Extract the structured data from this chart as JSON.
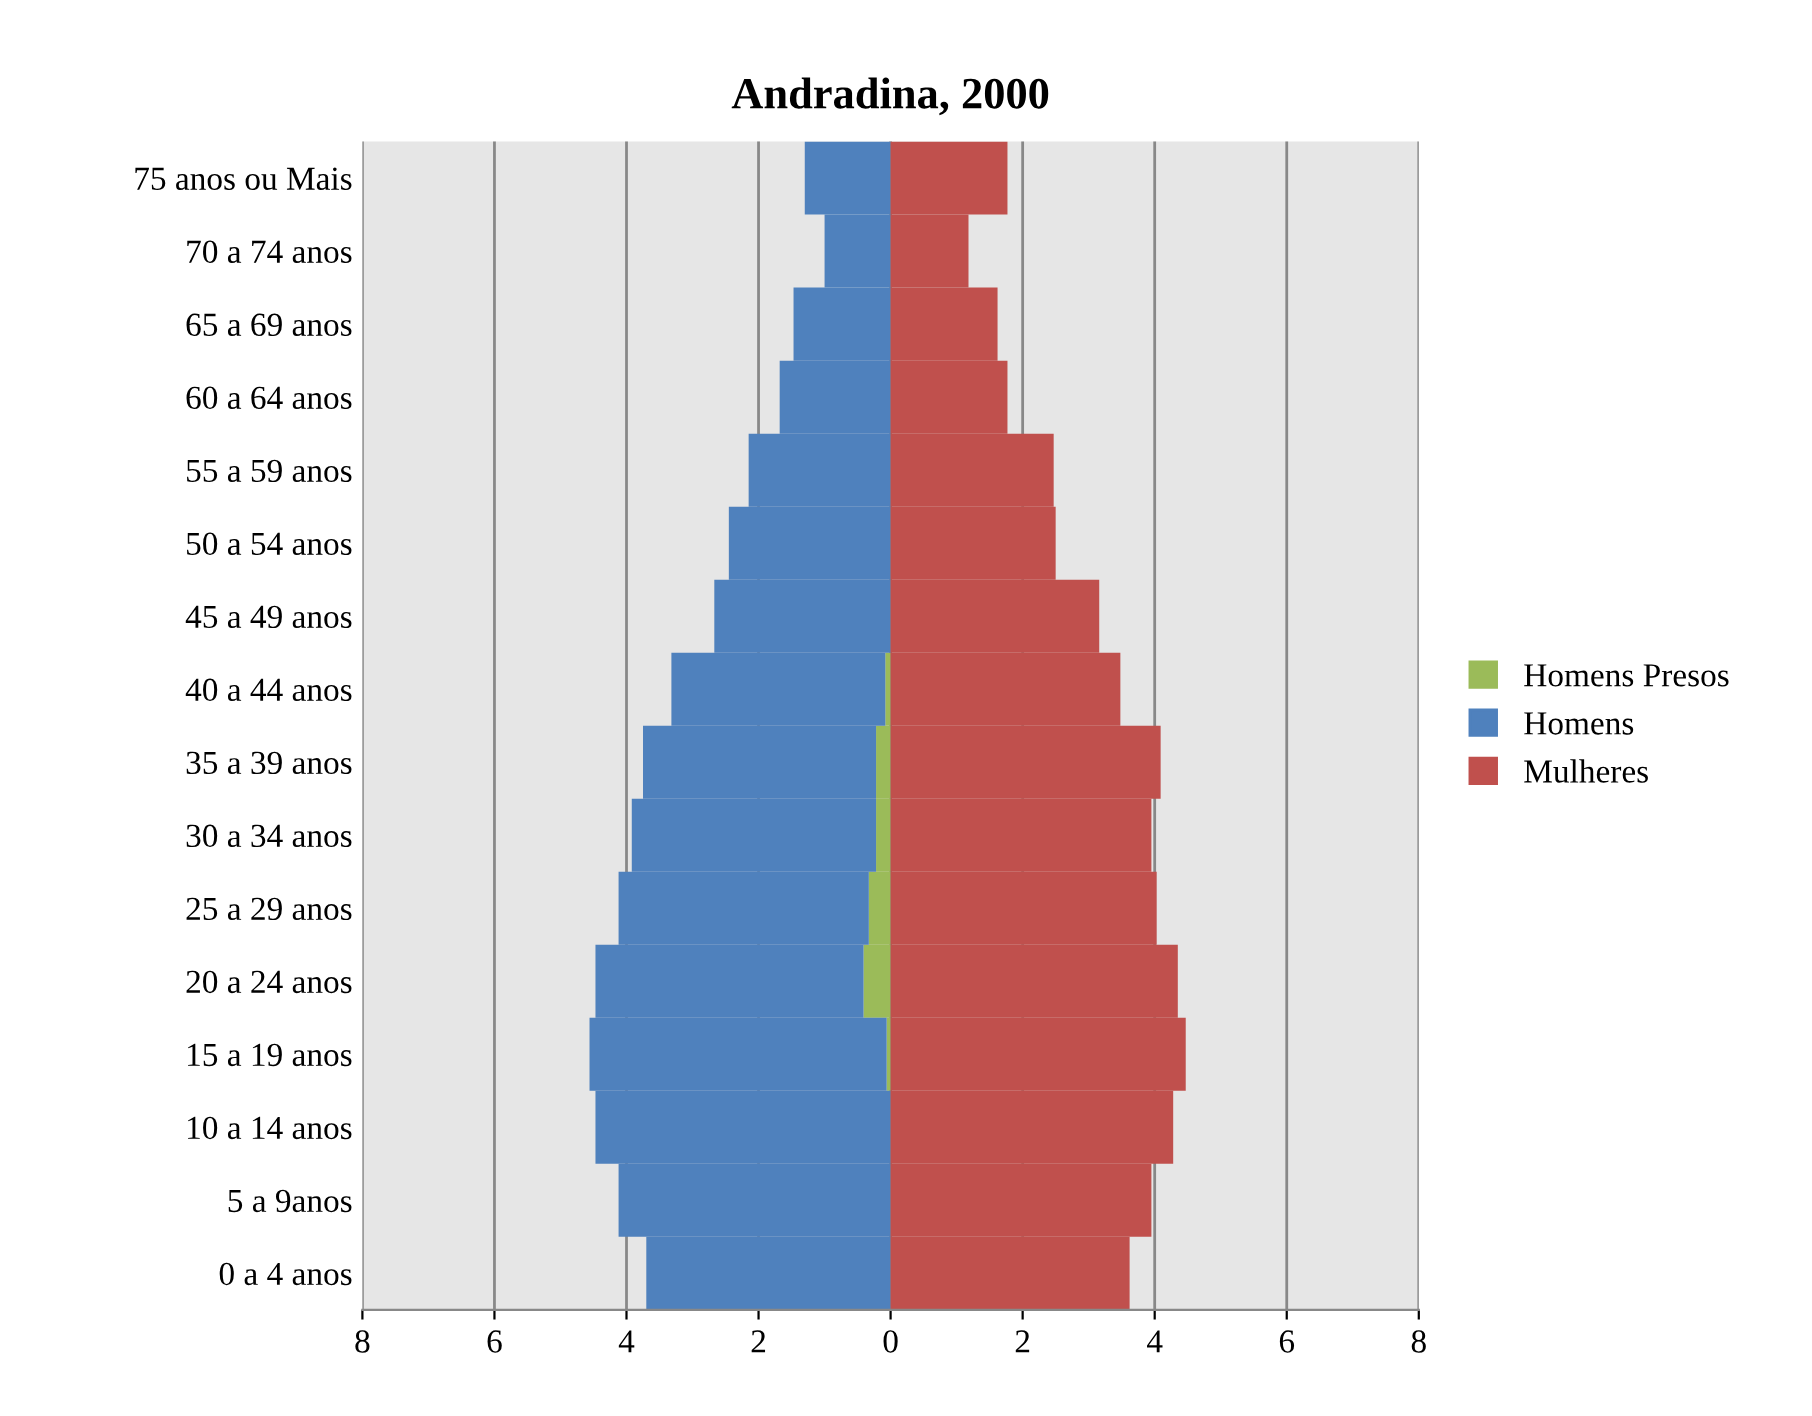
{
  "chart_data": {
    "type": "bar",
    "orientation": "horizontal",
    "stacked": true,
    "title": "Andradina, 2000",
    "categories": [
      "75 anos ou Mais",
      "70 a 74 anos",
      "65 a 69 anos",
      "60 a 64 anos",
      "55 a 59 anos",
      "50 a 54 anos",
      "45 a 49 anos",
      "40 a 44 anos",
      "35 a 39 anos",
      "30 a 34 anos",
      "25 a 29 anos",
      "20 a 24 anos",
      "15 a 19 anos",
      "10 a 14 anos",
      "5 a 9anos",
      "0 a 4 anos"
    ],
    "series": [
      {
        "name": "Homens Presos",
        "color": "#9bbb59",
        "values": [
          0,
          0,
          0,
          0,
          0,
          null,
          null,
          -0.08,
          -0.22,
          -0.22,
          -0.33,
          -0.41,
          -0.06,
          0,
          0,
          0
        ]
      },
      {
        "name": "Homens",
        "color": "#4f81bd",
        "values": [
          -1.3,
          -1.0,
          -1.47,
          -1.68,
          -2.15,
          -2.45,
          -2.67,
          -3.24,
          -3.53,
          -3.7,
          -3.79,
          -4.06,
          -4.5,
          -4.47,
          -4.12,
          -3.7
        ]
      },
      {
        "name": "Mulheres",
        "color": "#c0504d",
        "values": [
          1.77,
          1.18,
          1.62,
          1.77,
          2.47,
          2.5,
          3.16,
          3.48,
          4.09,
          3.95,
          4.03,
          4.35,
          4.47,
          4.28,
          3.95,
          3.62
        ]
      }
    ],
    "xlim": [
      -8,
      8
    ],
    "xticks": [
      {
        "value": -8,
        "label": "8"
      },
      {
        "value": -6,
        "label": "6"
      },
      {
        "value": -4,
        "label": "4"
      },
      {
        "value": -2,
        "label": "2"
      },
      0,
      2,
      4,
      6,
      8
    ],
    "grid": "x",
    "legend": "right"
  }
}
